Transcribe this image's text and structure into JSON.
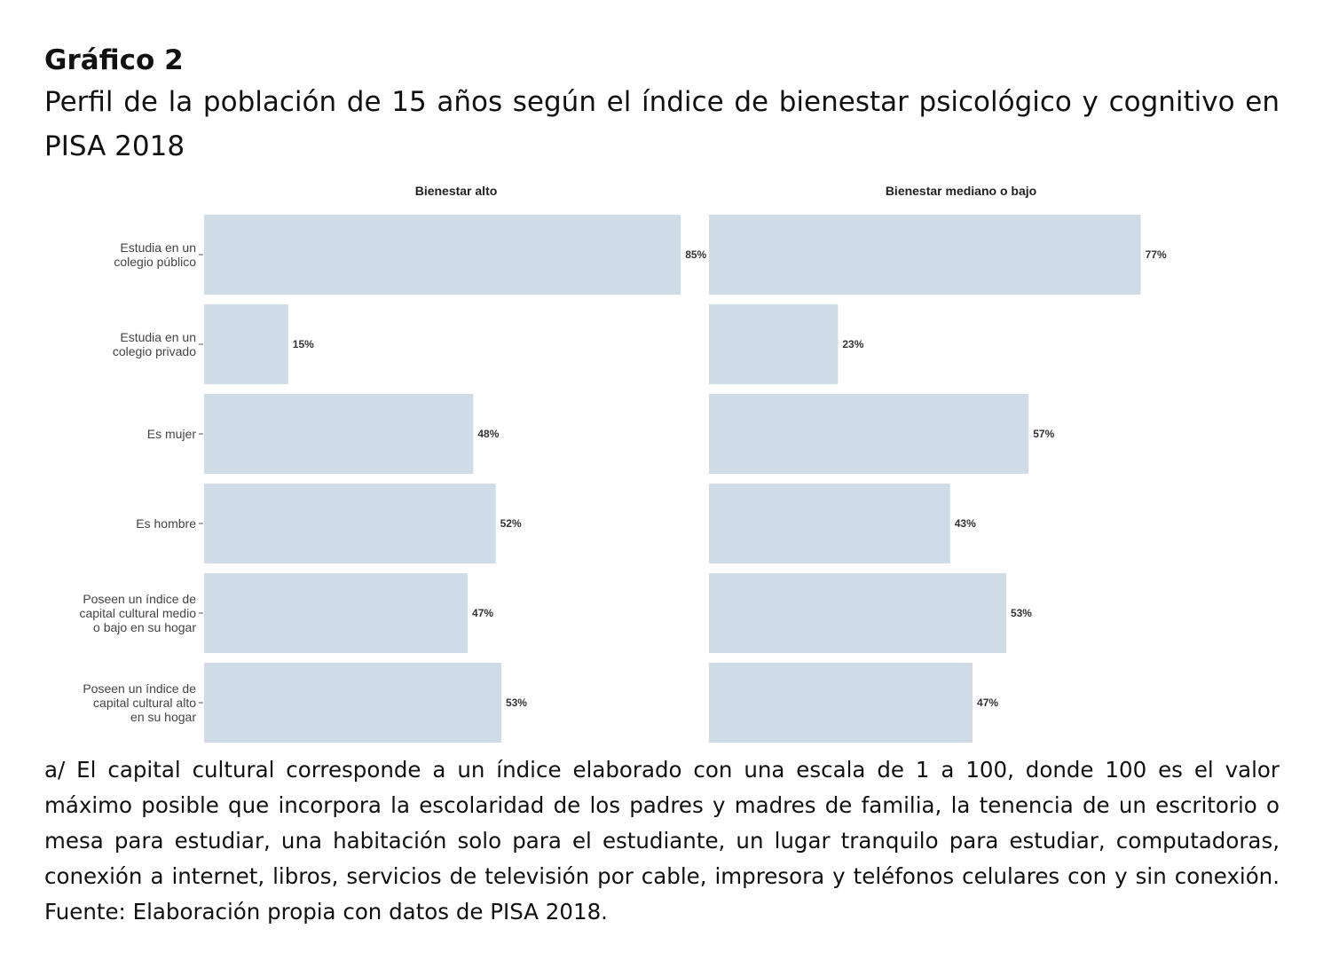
{
  "figure": {
    "label": "Gráfico 2",
    "title": "Perfil de la población de 15 años según el índice de bienestar psicológico y cognitivo en PISA 2018",
    "note": "a/ El capital cultural corresponde a un índice elaborado con una escala de 1 a 100, donde 100 es el valor máximo posible que incorpora la escolaridad de los padres y madres de familia, la tenencia de un escritorio o mesa para estudiar, una habitación solo para el estudiante, un lugar tranquilo para estudiar, computadoras, conexión a internet, libros, servicios de televisión por cable, impresora y teléfonos celulares con y sin conexión.",
    "source": "Fuente: Elaboración propia con datos de PISA 2018."
  },
  "chart_data": {
    "type": "bar",
    "orientation": "horizontal",
    "categories": [
      [
        "Estudia en un",
        "colegio público"
      ],
      [
        "Estudia en un",
        "colegio privado"
      ],
      [
        "Es mujer"
      ],
      [
        "Es hombre"
      ],
      [
        "Poseen un índice de",
        "capital cultural medio",
        "o bajo en su hogar"
      ],
      [
        "Poseen un índice de",
        "capital cultural alto",
        "en su hogar"
      ]
    ],
    "xlim": [
      0,
      100
    ],
    "grid": false,
    "bar_color": "#cfdce8",
    "panels": [
      {
        "title": "Bienestar alto",
        "values": [
          85,
          15,
          48,
          52,
          47,
          53
        ],
        "labels": [
          "85%",
          "15%",
          "48%",
          "52%",
          "47%",
          "53%"
        ]
      },
      {
        "title": "Bienestar mediano o bajo",
        "values": [
          77,
          23,
          57,
          43,
          53,
          47
        ],
        "labels": [
          "77%",
          "23%",
          "57%",
          "43%",
          "53%",
          "47%"
        ]
      }
    ]
  }
}
